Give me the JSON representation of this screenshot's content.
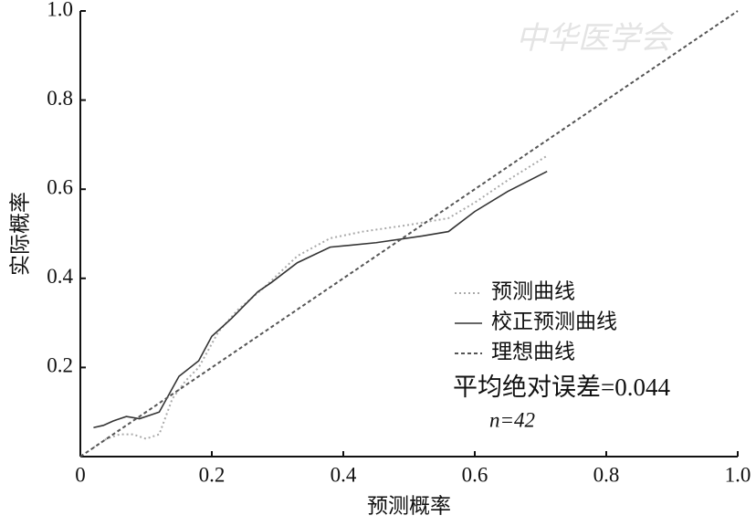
{
  "chart_data": {
    "type": "line",
    "xlabel": "预测概率",
    "ylabel": "实际概率",
    "watermark": "中华医学会",
    "xlim": [
      0,
      1
    ],
    "ylim": [
      0,
      1
    ],
    "xticks": [
      0,
      0.2,
      0.4,
      0.6,
      0.8,
      {
        "value": 1,
        "label": "1.0"
      }
    ],
    "yticks": [
      0.2,
      0.4,
      0.6,
      0.8,
      {
        "value": 1,
        "label": "1.0"
      }
    ],
    "series": [
      {
        "name": "预测曲线",
        "color": "#aaaaaa",
        "style": "dotted",
        "x": [
          0.02,
          0.04,
          0.06,
          0.08,
          0.1,
          0.12,
          0.14,
          0.16,
          0.18,
          0.21,
          0.24,
          0.28,
          0.33,
          0.38,
          0.43,
          0.5,
          0.56,
          0.6,
          0.65,
          0.71
        ],
        "values": [
          0.02,
          0.04,
          0.05,
          0.05,
          0.04,
          0.05,
          0.13,
          0.17,
          0.2,
          0.28,
          0.33,
          0.38,
          0.45,
          0.49,
          0.505,
          0.52,
          0.535,
          0.57,
          0.62,
          0.675
        ]
      },
      {
        "name": "校正预测曲线",
        "color": "#333333",
        "style": "solid",
        "x": [
          0.02,
          0.035,
          0.05,
          0.07,
          0.09,
          0.12,
          0.15,
          0.18,
          0.2,
          0.23,
          0.27,
          0.29,
          0.33,
          0.38,
          0.45,
          0.52,
          0.56,
          0.6,
          0.65,
          0.71
        ],
        "values": [
          0.065,
          0.07,
          0.08,
          0.09,
          0.085,
          0.1,
          0.18,
          0.215,
          0.27,
          0.31,
          0.37,
          0.39,
          0.435,
          0.47,
          0.48,
          0.495,
          0.505,
          0.55,
          0.595,
          0.64
        ]
      },
      {
        "name": "理想曲线",
        "color": "#555555",
        "style": "dashed",
        "x": [
          0,
          1
        ],
        "values": [
          0,
          1
        ]
      }
    ],
    "annotations": [
      "平均绝对误差=0.044",
      "n=42"
    ]
  }
}
